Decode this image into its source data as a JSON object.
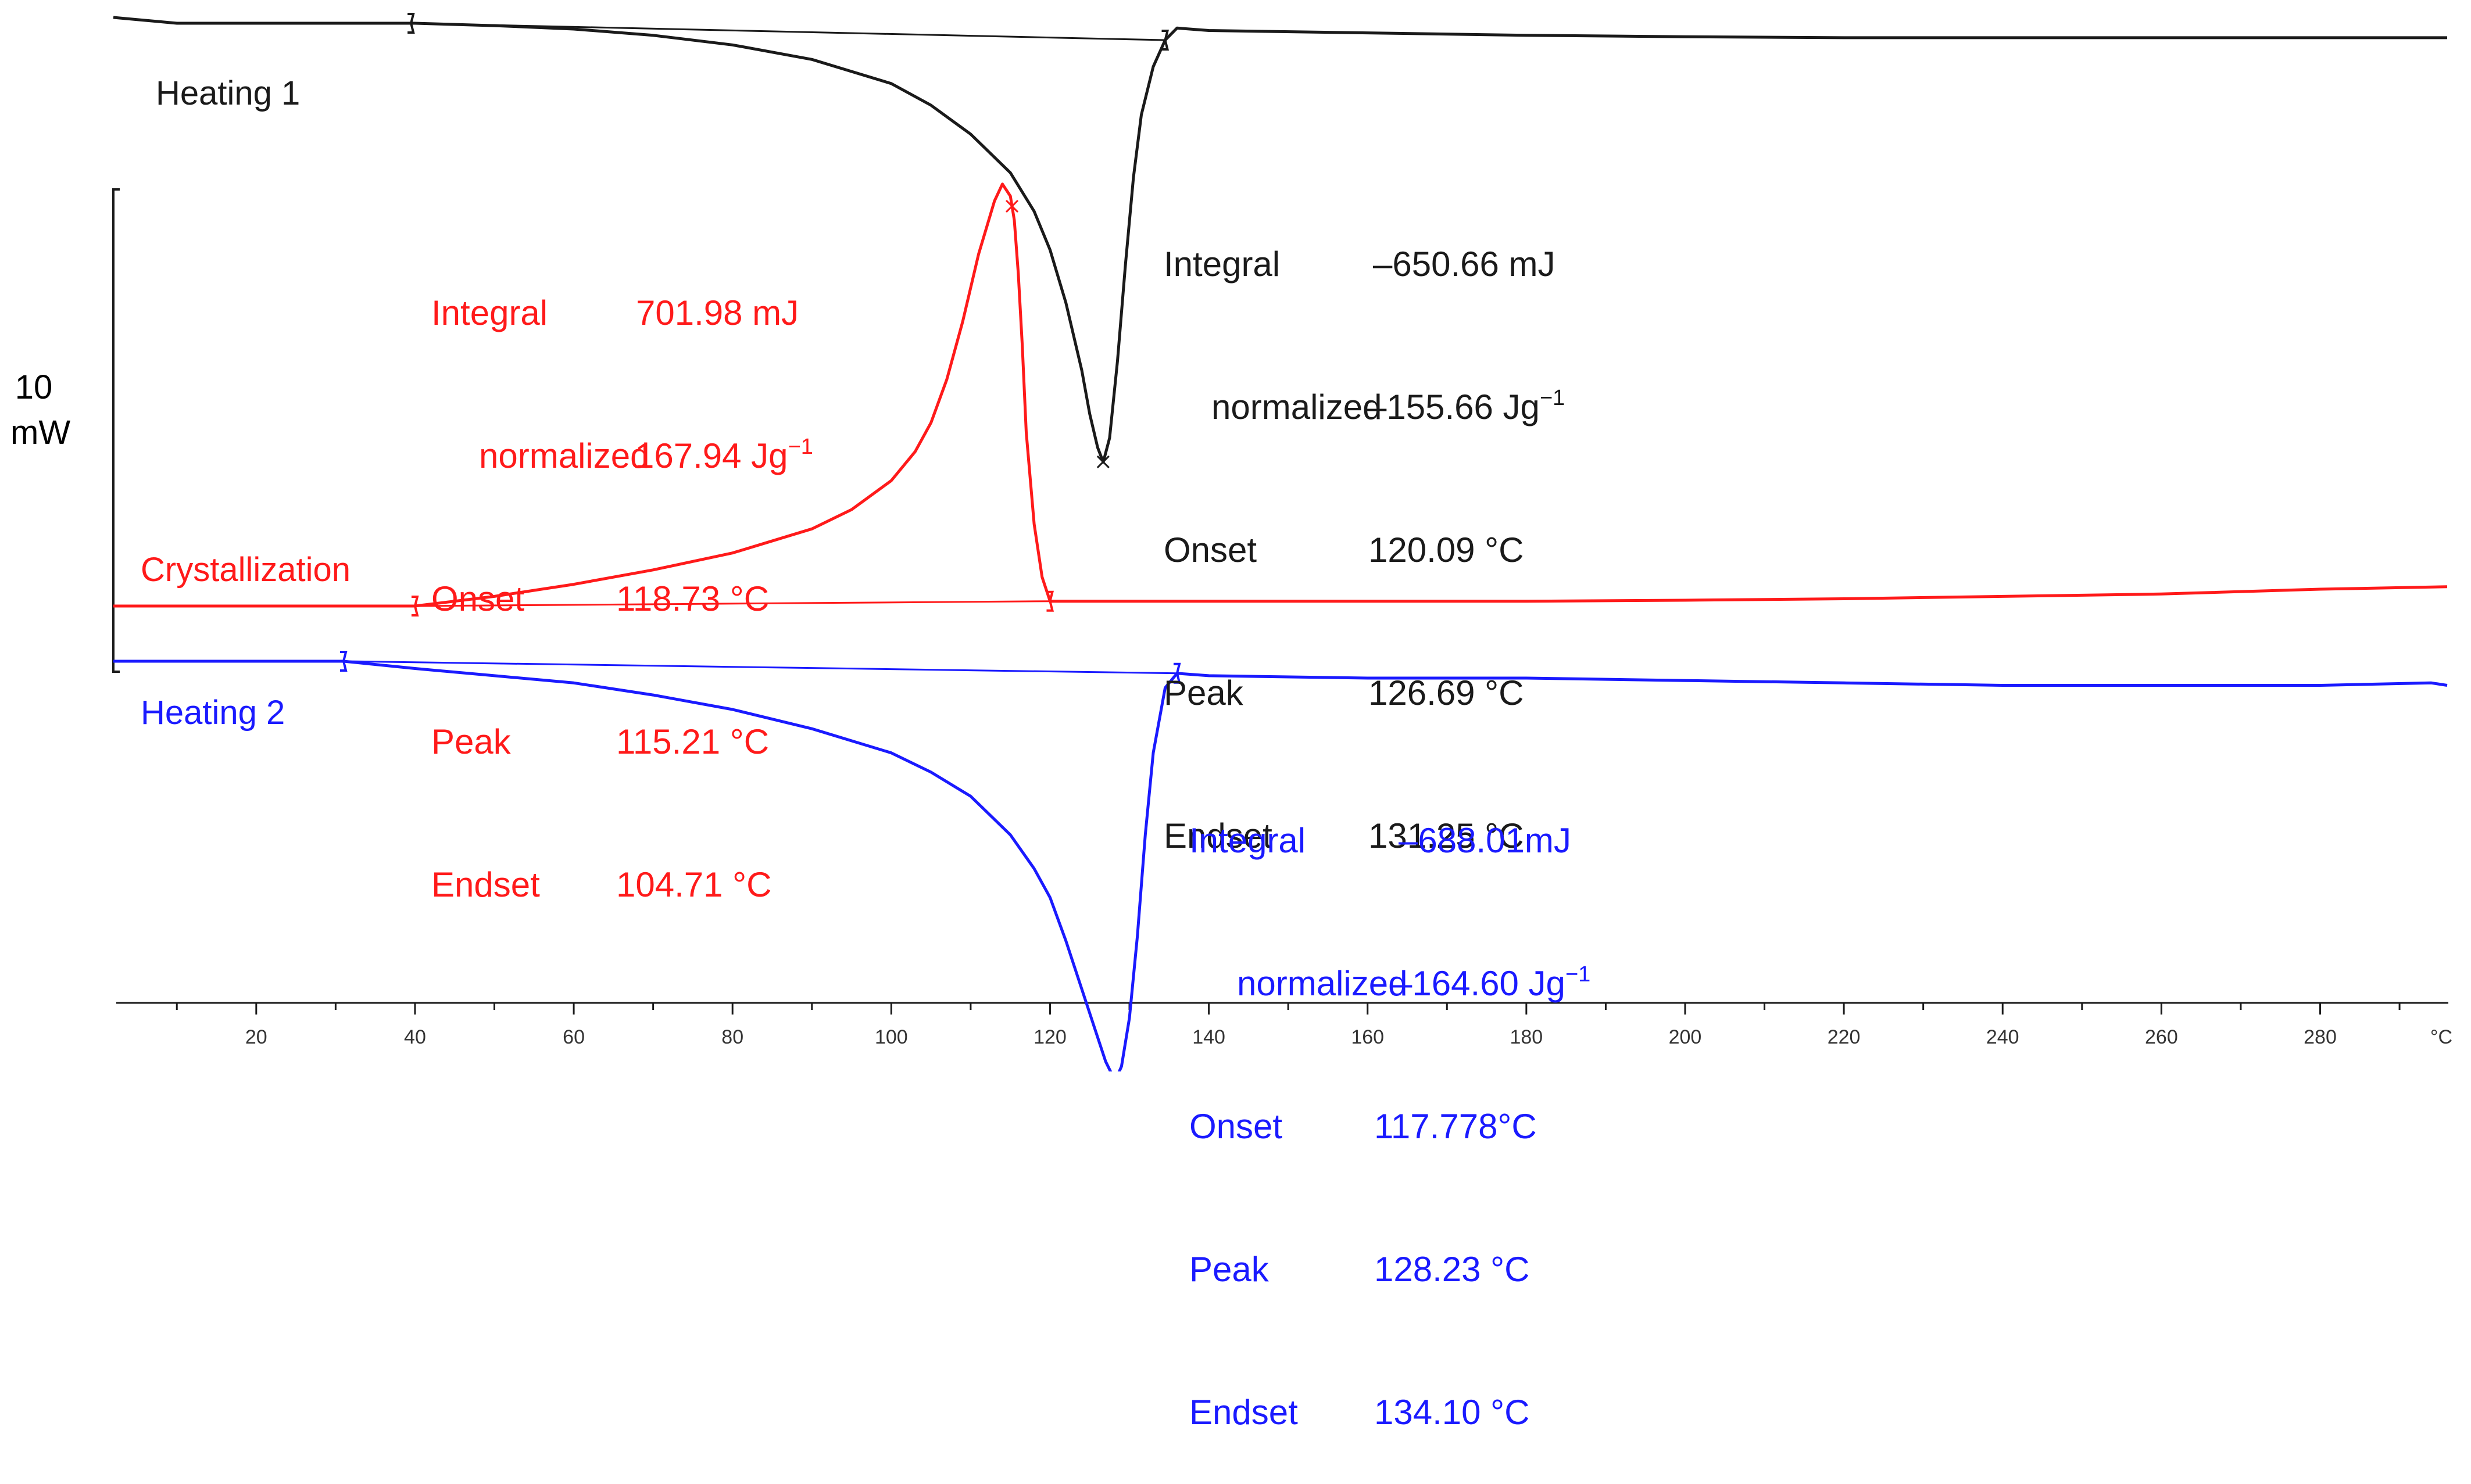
{
  "chart_data": {
    "type": "line",
    "title": "",
    "xlabel": "°C",
    "ylabel": "",
    "xlim": [
      2,
      296
    ],
    "x_ticks": [
      20,
      40,
      60,
      80,
      100,
      120,
      140,
      160,
      180,
      200,
      220,
      240,
      260,
      280
    ],
    "x_unit": "°C",
    "scale_bar": {
      "value": "10",
      "unit": "mW"
    },
    "colors": {
      "heating1": "#1a1a1a",
      "crystallization": "#ff1a1a",
      "heating2": "#1a1aff"
    },
    "series": [
      {
        "name": "Heating 1",
        "label": "Heating 1",
        "color": "#1a1a1a",
        "integral_label": "Integral",
        "integral_value": "–650.66 mJ",
        "normalized_label": "normalized",
        "normalized_value": "–155.66 Jg",
        "onset_label": "Onset",
        "onset_value": "120.09 °C",
        "peak_label": "Peak",
        "peak_value": "126.69 °C",
        "endset_label": "Endset",
        "endset_value": "131.25 °C",
        "peak_temperature": 126.69,
        "integration_limits": [
          39.5,
          134.5
        ],
        "x": [
          2,
          10,
          20,
          30,
          40,
          50,
          60,
          70,
          80,
          90,
          100,
          105,
          110,
          115,
          118,
          120,
          122,
          124,
          125,
          126,
          126.7,
          127.5,
          128.5,
          129.5,
          130.5,
          131.5,
          133,
          134.5,
          136,
          140,
          160,
          180,
          200,
          220,
          240,
          260,
          280,
          296
        ],
        "y": [
          0.12,
          0.0,
          0.0,
          0.0,
          0.0,
          -0.05,
          -0.12,
          -0.25,
          -0.45,
          -0.75,
          -1.25,
          -1.7,
          -2.3,
          -3.1,
          -3.9,
          -4.7,
          -5.8,
          -7.2,
          -8.1,
          -8.8,
          -9.1,
          -8.6,
          -7.0,
          -5.0,
          -3.2,
          -1.9,
          -0.9,
          -0.35,
          -0.1,
          -0.15,
          -0.2,
          -0.25,
          -0.28,
          -0.3,
          -0.3,
          -0.3,
          -0.3,
          -0.3
        ]
      },
      {
        "name": "Crystallization",
        "label": "Crystallization",
        "color": "#ff1a1a",
        "integral_label": "Integral",
        "integral_value": "701.98 mJ",
        "normalized_label": "normalized",
        "normalized_value": "167.94 Jg",
        "onset_label": "Onset",
        "onset_value": "118.73 °C",
        "peak_label": "Peak",
        "peak_value": "115.21 °C",
        "endset_label": "Endset",
        "endset_value": "104.71 °C",
        "peak_temperature": 115.21,
        "integration_limits": [
          40,
          120
        ],
        "x": [
          2,
          20,
          40,
          50,
          60,
          70,
          80,
          90,
          95,
          100,
          103,
          105,
          107,
          109,
          111,
          113,
          114,
          115,
          115.5,
          116,
          116.5,
          117,
          118,
          119,
          120,
          122,
          140,
          160,
          180,
          200,
          220,
          240,
          260,
          280,
          296
        ],
        "y": [
          0.0,
          0.0,
          0.0,
          0.2,
          0.45,
          0.75,
          1.1,
          1.6,
          2.0,
          2.6,
          3.2,
          3.8,
          4.7,
          5.9,
          7.3,
          8.4,
          8.75,
          8.5,
          8.0,
          6.9,
          5.4,
          3.6,
          1.7,
          0.6,
          0.1,
          0.1,
          0.1,
          0.1,
          0.1,
          0.12,
          0.15,
          0.2,
          0.25,
          0.35,
          0.4
        ]
      },
      {
        "name": "Heating 2",
        "label": "Heating 2",
        "color": "#1a1aff",
        "integral_label": "Integral",
        "integral_value": "–688.01mJ",
        "normalized_label": "normalized",
        "normalized_value": "–164.60 Jg",
        "onset_label": "Onset",
        "onset_value": "117.778°C",
        "peak_label": "Peak",
        "peak_value": "128.23 °C",
        "endset_label": "Endset",
        "endset_value": "134.10 °C",
        "peak_temperature": 128.23,
        "integration_limits": [
          31,
          136
        ],
        "x": [
          2,
          10,
          20,
          31,
          40,
          50,
          60,
          70,
          80,
          90,
          100,
          105,
          110,
          115,
          118,
          120,
          122,
          124,
          126,
          127,
          128.2,
          129,
          130,
          131,
          132,
          133,
          134.5,
          136,
          140,
          160,
          180,
          200,
          220,
          240,
          260,
          280,
          294,
          296
        ],
        "y": [
          0.0,
          0.0,
          0.0,
          0.0,
          -0.15,
          -0.3,
          -0.45,
          -0.7,
          -1.0,
          -1.4,
          -1.9,
          -2.3,
          -2.8,
          -3.6,
          -4.3,
          -4.9,
          -5.8,
          -6.8,
          -7.8,
          -8.3,
          -8.7,
          -8.4,
          -7.4,
          -5.7,
          -3.6,
          -1.9,
          -0.55,
          -0.25,
          -0.3,
          -0.35,
          -0.35,
          -0.4,
          -0.45,
          -0.5,
          -0.5,
          -0.5,
          -0.45,
          -0.5
        ]
      }
    ]
  }
}
